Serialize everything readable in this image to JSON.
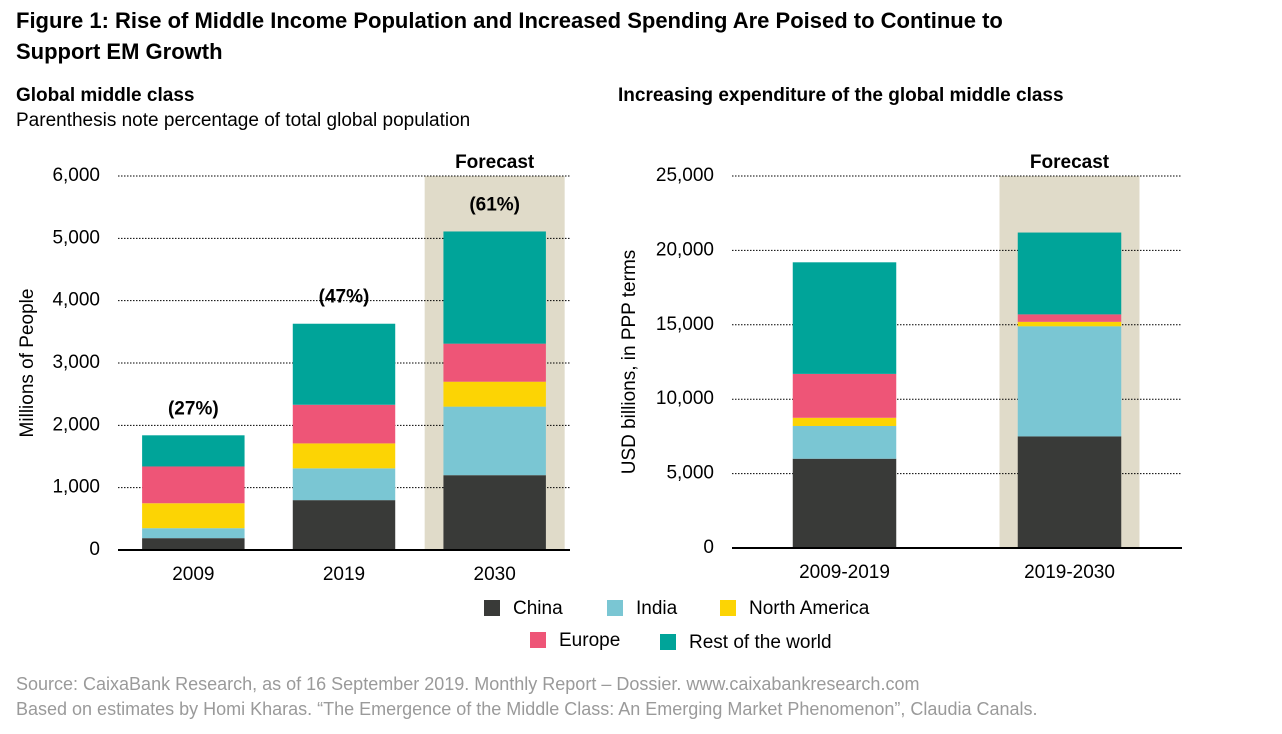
{
  "title": "Figure 1: Rise of Middle Income Population and Increased Spending Are Poised to Continue to Support EM Growth",
  "source": [
    "Source: CaixaBank Research, as of 16 September 2019. Monthly Report – Dossier.  www.caixabankresearch.com",
    "Based on estimates by Homi Kharas. “The Emergence of the Middle Class: An Emerging Market Phenomenon”, Claudia Canals."
  ],
  "chart_data": [
    {
      "type": "stacked_bar",
      "title": "Global middle class",
      "subtitle": "Parenthesis note percentage of total global population",
      "y_label": "Millions of People",
      "categories": [
        "2009",
        "2019",
        "2030"
      ],
      "series": [
        {
          "name": "China",
          "color": "#393a38",
          "values": [
            190,
            800,
            1200
          ]
        },
        {
          "name": "India",
          "color": "#7ac6d3",
          "values": [
            160,
            510,
            1100
          ]
        },
        {
          "name": "North America",
          "color": "#fcd404",
          "values": [
            400,
            400,
            400
          ]
        },
        {
          "name": "Europe",
          "color": "#ee5577",
          "values": [
            590,
            620,
            610
          ]
        },
        {
          "name": "Rest of the world",
          "color": "#00a499",
          "values": [
            500,
            1300,
            1800
          ]
        }
      ],
      "annotations": [
        "(27%)",
        "(47%)",
        "(61%)"
      ],
      "shaded_categories": [
        "2030"
      ],
      "shade_label": "Forecast",
      "shade_color": "#e0dbc9",
      "ylim": [
        0,
        6000
      ],
      "yticks": [
        0,
        {
          "value": 1000,
          "label": "1,000"
        },
        {
          "value": 2000,
          "label": "2,000"
        },
        {
          "value": 3000,
          "label": "3,000"
        },
        {
          "value": 4000,
          "label": "4,000"
        },
        {
          "value": 5000,
          "label": "5,000"
        },
        {
          "value": 6000,
          "label": "6,000"
        }
      ],
      "grid": true
    },
    {
      "type": "stacked_bar",
      "title": "Increasing expenditure of the global middle class",
      "y_label": "USD billions, in PPP terms",
      "categories": [
        "2009-2019",
        "2019-2030"
      ],
      "series": [
        {
          "values": [
            6000,
            7500
          ]
        },
        {
          "values": [
            2200,
            7400
          ]
        },
        {
          "values": [
            550,
            300
          ]
        },
        {
          "values": [
            2950,
            500
          ]
        },
        {
          "values": [
            7500,
            5500
          ]
        }
      ],
      "shaded_categories": [
        "2019-2030"
      ],
      "shade_label": "Forecast",
      "ylim": [
        0,
        25000
      ],
      "yticks": [
        0,
        {
          "value": 5000,
          "label": "5,000"
        },
        {
          "value": 10000,
          "label": "10,000"
        },
        {
          "value": 15000,
          "label": "15,000"
        },
        {
          "value": 20000,
          "label": "20,000"
        },
        {
          "value": 25000,
          "label": "25,000"
        }
      ],
      "grid": true
    }
  ]
}
